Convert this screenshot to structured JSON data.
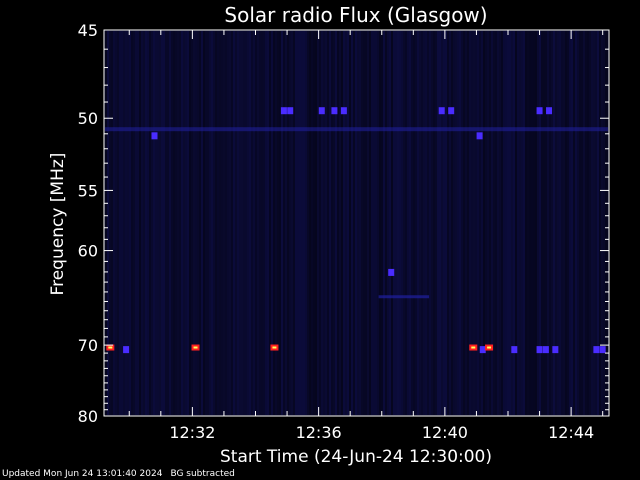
{
  "chart_data": {
    "type": "heatmap",
    "title": "Solar radio Flux (Glasgow)",
    "xlabel": "Start Time (24-Jun-24 12:30:00)",
    "ylabel": "Frequency [MHz]",
    "x_unit": "minutes after 12:30:00",
    "xlim": [
      -0.8,
      15.2
    ],
    "ylim": [
      45,
      80
    ],
    "y_scale": "reciprocal",
    "x_ticks": [
      {
        "value": 2,
        "label": "12:32"
      },
      {
        "value": 6,
        "label": "12:36"
      },
      {
        "value": 10,
        "label": "12:40"
      },
      {
        "value": 14,
        "label": "12:44"
      }
    ],
    "y_ticks": [
      {
        "value": 45,
        "label": "45"
      },
      {
        "value": 50,
        "label": "50"
      },
      {
        "value": 55,
        "label": "55"
      },
      {
        "value": 60,
        "label": "60"
      },
      {
        "value": 70,
        "label": "70"
      },
      {
        "value": 80,
        "label": "80"
      }
    ],
    "background_color": "#050518",
    "colors": {
      "axis": "#ffffff",
      "weak": "#2020a0",
      "medium": "#4a2cff",
      "strong": "#ff2020",
      "peak": "#ffff60"
    },
    "bright_spots": [
      {
        "time": -0.6,
        "freq": 70.3,
        "level": "strong"
      },
      {
        "time": 2.1,
        "freq": 70.3,
        "level": "strong"
      },
      {
        "time": 4.6,
        "freq": 70.3,
        "level": "strong"
      },
      {
        "time": 10.9,
        "freq": 70.3,
        "level": "strong"
      },
      {
        "time": 11.4,
        "freq": 70.3,
        "level": "strong"
      }
    ],
    "blue_spots": [
      {
        "time": -0.1,
        "freq": 70.5
      },
      {
        "time": 11.2,
        "freq": 70.5
      },
      {
        "time": 12.2,
        "freq": 70.5
      },
      {
        "time": 13.0,
        "freq": 70.5
      },
      {
        "time": 13.2,
        "freq": 70.5
      },
      {
        "time": 13.5,
        "freq": 70.5
      },
      {
        "time": 14.8,
        "freq": 70.5
      },
      {
        "time": 15.0,
        "freq": 70.5
      },
      {
        "time": 0.8,
        "freq": 51.1
      },
      {
        "time": 11.1,
        "freq": 51.1
      },
      {
        "time": 4.9,
        "freq": 49.5
      },
      {
        "time": 5.1,
        "freq": 49.5
      },
      {
        "time": 6.1,
        "freq": 49.5
      },
      {
        "time": 6.5,
        "freq": 49.5
      },
      {
        "time": 6.8,
        "freq": 49.5
      },
      {
        "time": 9.9,
        "freq": 49.5
      },
      {
        "time": 10.2,
        "freq": 49.5
      },
      {
        "time": 13.0,
        "freq": 49.5
      },
      {
        "time": 13.3,
        "freq": 49.5
      },
      {
        "time": 8.3,
        "freq": 62.0
      }
    ],
    "band_freq": 50.7,
    "faint_band_freq": 64.5
  },
  "footer": {
    "updated": "Updated Mon Jun 24 13:01:40 2024",
    "note": "BG subtracted"
  }
}
